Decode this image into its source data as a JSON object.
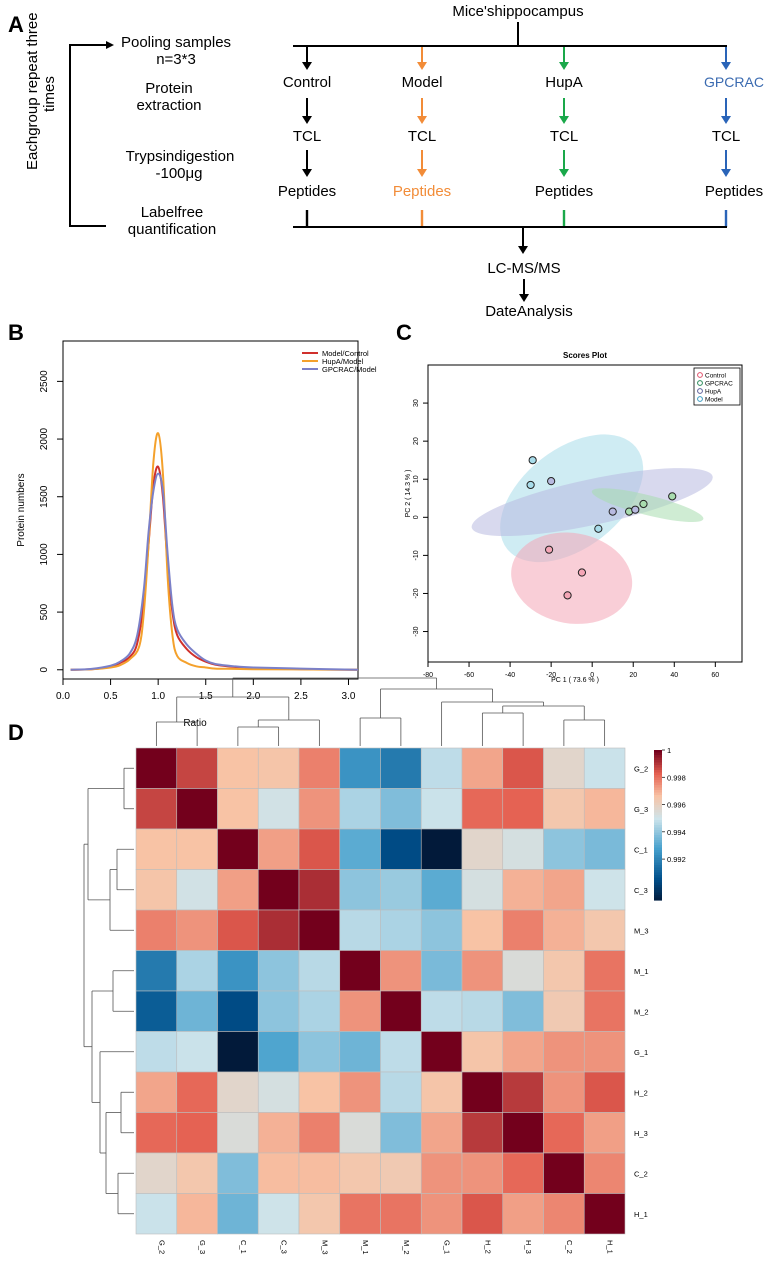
{
  "panel_letters": {
    "a": "A",
    "b": "B",
    "c": "C",
    "d": "D"
  },
  "colors": {
    "black": "#000000",
    "orange": "#f28c38",
    "green": "#1aa84a",
    "blue": "#2a64b8",
    "gpcrac_text": "#3a6ab0"
  },
  "flow": {
    "top": "Mice'shippocampus",
    "repeat_line1": "Eachgroup repeat three",
    "repeat_line2": "times",
    "left_steps": {
      "pool1": "Pooling samples",
      "pool2": "n=3*3",
      "prot1": "Protein",
      "prot2": "extraction",
      "tryp1": "Trypsindigestion",
      "tryp2": "-100μg",
      "label1": "Labelfree",
      "label2": "quantification"
    },
    "groups": [
      {
        "name": "Control",
        "tcl": "TCL",
        "pep": "Peptides"
      },
      {
        "name": "Model",
        "tcl": "TCL",
        "pep": "Peptides"
      },
      {
        "name": "HupA",
        "tcl": "TCL",
        "pep": "Peptides"
      },
      {
        "name": "GPCRAC",
        "tcl": "TCL",
        "pep": "Peptides"
      }
    ],
    "lcms": "LC-MS/MS",
    "date": "DateAnalysis"
  },
  "chart_data": [
    {
      "type": "line",
      "ylabel": "Protein numbers",
      "xlim": [
        0,
        3.1
      ],
      "ylim": [
        -80,
        2850
      ],
      "xticks": [
        0.0,
        0.5,
        1.0,
        1.5,
        2.0,
        2.5,
        3.0
      ],
      "xtick_labels": [
        "0.0",
        "0.5",
        "1.0",
        "1.5",
        "2.0",
        "2.5",
        "3.0"
      ],
      "yticks": [
        0,
        500,
        1000,
        1500,
        2000,
        2500
      ],
      "ytick_labels": [
        "0",
        "500",
        "1000",
        "1500",
        "2000",
        "2500"
      ],
      "legend_position": "top-right",
      "series": [
        {
          "name": "Model/Control",
          "color": "#d0302c",
          "x": [
            0.08,
            0.3,
            0.5,
            0.6,
            0.7,
            0.78,
            0.85,
            0.9,
            0.95,
            1.0,
            1.05,
            1.1,
            1.15,
            1.2,
            1.3,
            1.4,
            1.5,
            1.6,
            1.8,
            2.0,
            2.5,
            3.1
          ],
          "y": [
            0,
            5,
            25,
            60,
            110,
            230,
            600,
            1100,
            1600,
            1760,
            1500,
            900,
            500,
            300,
            180,
            110,
            70,
            45,
            25,
            15,
            5,
            0
          ]
        },
        {
          "name": "HupA/Model",
          "color": "#f4a12c",
          "x": [
            0.08,
            0.3,
            0.5,
            0.6,
            0.7,
            0.8,
            0.85,
            0.9,
            0.95,
            1.0,
            1.05,
            1.1,
            1.15,
            1.2,
            1.3,
            1.4,
            1.5,
            1.6,
            1.8,
            2.0,
            2.5,
            3.1
          ],
          "y": [
            0,
            5,
            20,
            40,
            90,
            200,
            500,
            1100,
            1800,
            2050,
            1700,
            800,
            300,
            120,
            60,
            30,
            20,
            10,
            8,
            5,
            3,
            0
          ]
        },
        {
          "name": "GPCRAC/Model",
          "color": "#7b80c8",
          "x": [
            0.08,
            0.3,
            0.5,
            0.6,
            0.7,
            0.78,
            0.85,
            0.9,
            0.95,
            1.0,
            1.05,
            1.1,
            1.15,
            1.2,
            1.3,
            1.4,
            1.5,
            1.6,
            1.8,
            2.0,
            2.5,
            3.1
          ],
          "y": [
            0,
            8,
            35,
            70,
            140,
            300,
            700,
            1200,
            1550,
            1700,
            1550,
            1000,
            550,
            350,
            220,
            140,
            80,
            50,
            30,
            20,
            10,
            0
          ]
        }
      ]
    },
    {
      "type": "scatter",
      "title": "Scores Plot",
      "xlabel": "PC 1 ( 73.6 % )",
      "ylabel": "PC 2 ( 14.3 % )",
      "xlim": [
        -80,
        73
      ],
      "ylim": [
        -38,
        40
      ],
      "xticks": [
        -80,
        -60,
        -40,
        -20,
        0,
        20,
        40,
        60
      ],
      "xtick_labels": [
        "-80",
        "-60",
        "-40",
        "-20",
        "0",
        "20",
        "40",
        "60"
      ],
      "yticks": [
        -30,
        -20,
        -10,
        0,
        10,
        20,
        30
      ],
      "ytick_labels": [
        "-30",
        "-20",
        "-10",
        "0",
        "10",
        "20",
        "30"
      ],
      "legend_position": "top-right",
      "groups": [
        {
          "name": "Control",
          "color": "#e0506a",
          "fill": "#f4a6b6",
          "points": [
            [
              -21,
              -8.5
            ],
            [
              -5,
              -14.5
            ],
            [
              -12,
              -20.5
            ]
          ],
          "ellipse": {
            "cx": -10,
            "cy": -16,
            "rx": 22,
            "ry": 16,
            "angle": -80
          }
        },
        {
          "name": "GPCRAC",
          "color": "#2a8a5a",
          "fill": "#a8dcae",
          "points": [
            [
              18,
              1.5
            ],
            [
              25,
              3.5
            ],
            [
              39,
              5.5
            ]
          ],
          "ellipse": {
            "cx": 27,
            "cy": 3.2,
            "rx": 28,
            "ry": 2.6,
            "angle": 14
          }
        },
        {
          "name": "HupA",
          "color": "#5b5f99",
          "fill": "#b8bae0",
          "points": [
            [
              10,
              1.5
            ],
            [
              21,
              2
            ],
            [
              -20,
              9.5
            ]
          ],
          "ellipse": {
            "cx": 0,
            "cy": 4,
            "rx": 60,
            "ry": 6,
            "angle": -12
          }
        },
        {
          "name": "Model",
          "color": "#3a9ac0",
          "fill": "#a8dcea",
          "points": [
            [
              -29,
              15
            ],
            [
              -30,
              8.5
            ],
            [
              3,
              -3
            ]
          ],
          "ellipse": {
            "cx": -10,
            "cy": 5,
            "rx": 40,
            "ry": 13,
            "angle": -38
          }
        }
      ]
    },
    {
      "type": "heatmap",
      "title": "Ratio",
      "labels": [
        "G_2",
        "G_3",
        "C_1",
        "C_3",
        "M_3",
        "M_1",
        "M_2",
        "G_1",
        "H_2",
        "H_3",
        "C_2",
        "H_1"
      ],
      "row_labels": [
        "G_2",
        "G_3",
        "C_1",
        "C_3",
        "M_3",
        "M_1",
        "M_2",
        "G_1",
        "H_2",
        "H_3",
        "C_2",
        "H_1"
      ],
      "col_labels": [
        "G_2",
        "G_3",
        "C_1",
        "C_3",
        "M_3",
        "M_1",
        "M_2",
        "G_1",
        "H_2",
        "H_3",
        "C_2",
        "H_1"
      ],
      "values": [
        [
          1.0,
          0.9988,
          0.9967,
          0.9966,
          0.9978,
          0.9925,
          0.9918,
          0.9948,
          0.9972,
          0.9985,
          0.9958,
          0.995
        ],
        [
          0.9988,
          1.0,
          0.9967,
          0.9952,
          0.9975,
          0.9945,
          0.9938,
          0.995,
          0.9982,
          0.9983,
          0.9965,
          0.9969
        ],
        [
          0.9967,
          0.9967,
          1.0,
          0.9973,
          0.9985,
          0.9932,
          0.9905,
          0.989,
          0.9958,
          0.9953,
          0.994,
          0.9937
        ],
        [
          0.9966,
          0.9952,
          0.9973,
          1.0,
          0.9992,
          0.994,
          0.9942,
          0.9932,
          0.9953,
          0.997,
          0.9972,
          0.9951
        ],
        [
          0.9978,
          0.9975,
          0.9985,
          0.9992,
          1.0,
          0.9947,
          0.9945,
          0.994,
          0.9967,
          0.9978,
          0.997,
          0.9965
        ],
        [
          0.9918,
          0.9945,
          0.9925,
          0.994,
          0.9947,
          1.0,
          0.9975,
          0.9937,
          0.9975,
          0.9955,
          0.9965,
          0.998
        ],
        [
          0.991,
          0.9935,
          0.9905,
          0.994,
          0.9945,
          0.9975,
          1.0,
          0.9948,
          0.9947,
          0.9938,
          0.9964,
          0.998
        ],
        [
          0.9948,
          0.995,
          0.989,
          0.993,
          0.994,
          0.9935,
          0.9948,
          1.0,
          0.9966,
          0.9972,
          0.9975,
          0.9975
        ],
        [
          0.9972,
          0.9982,
          0.9958,
          0.9953,
          0.9967,
          0.9975,
          0.9947,
          0.9966,
          1.0,
          0.999,
          0.9975,
          0.9985
        ],
        [
          0.9982,
          0.9983,
          0.9955,
          0.997,
          0.9978,
          0.9955,
          0.9938,
          0.9972,
          0.999,
          1.0,
          0.9982,
          0.9973
        ],
        [
          0.9958,
          0.9965,
          0.9938,
          0.9968,
          0.9968,
          0.9965,
          0.9964,
          0.9975,
          0.9975,
          0.9982,
          1.0,
          0.9977
        ],
        [
          0.995,
          0.9969,
          0.9935,
          0.9951,
          0.9965,
          0.998,
          0.998,
          0.9975,
          0.9985,
          0.9973,
          0.9977,
          1.0
        ]
      ],
      "colorbar_ticks": [
        0.992,
        0.994,
        0.996,
        0.998,
        1
      ],
      "colorbar_labels": [
        "0.992",
        "0.994",
        "0.996",
        "0.998",
        "1"
      ],
      "colorbar_range": [
        0.989,
        1.0
      ]
    }
  ]
}
